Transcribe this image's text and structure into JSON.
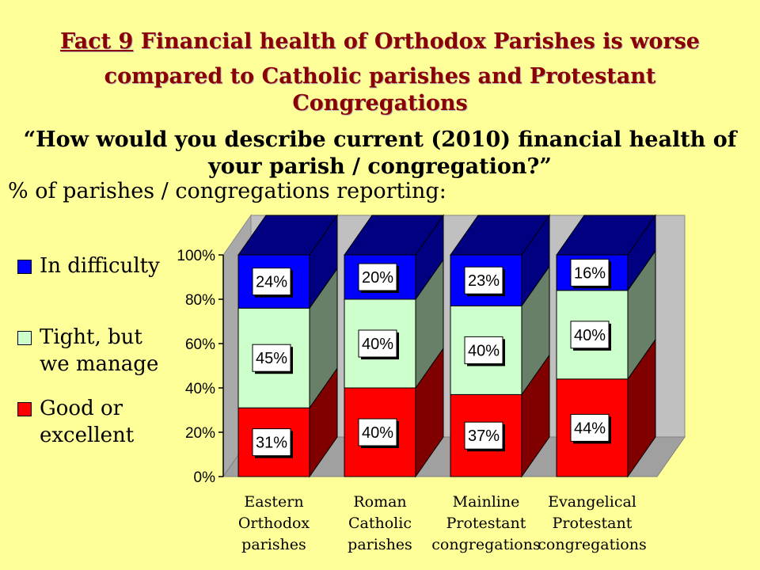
{
  "slide": {
    "title_prefix": "Fact 9",
    "title_line1": " Financial health of Orthodox Parishes is worse",
    "title_line2": "compared to Catholic parishes and Protestant",
    "title_line3": "Congregations",
    "question_line1": "“How would you describe current (2010) financial health of",
    "question_line2": "your parish / congregation?”",
    "subtitle": "% of parishes / congregations reporting:"
  },
  "legend": [
    {
      "lines": [
        "In difficulty"
      ],
      "color": "#0000ff"
    },
    {
      "lines": [
        "Tight, but",
        "we manage"
      ],
      "color": "#ccffcc"
    },
    {
      "lines": [
        "Good or",
        "excellent"
      ],
      "color": "#ff0000"
    }
  ],
  "chart_data": {
    "type": "bar",
    "stacked": true,
    "three_d": true,
    "categories": [
      [
        "Eastern",
        "Orthodox",
        "parishes"
      ],
      [
        "Roman",
        "Catholic",
        "parishes"
      ],
      [
        "Mainline",
        "Protestant",
        "congregations"
      ],
      [
        "Evangelical",
        "Protestant",
        "congregations"
      ]
    ],
    "series": [
      {
        "name": "Good or excellent",
        "values": [
          31,
          40,
          37,
          44
        ],
        "labels": [
          "31%",
          "40%",
          "37%",
          "44%"
        ],
        "color": "#ff0000",
        "side_color": "#800000"
      },
      {
        "name": "Tight, but we manage",
        "values": [
          45,
          40,
          40,
          40
        ],
        "labels": [
          "45%",
          "40%",
          "40%",
          "40%"
        ],
        "color": "#ccffcc",
        "side_color": "#678067"
      },
      {
        "name": "In difficulty",
        "values": [
          24,
          20,
          23,
          16
        ],
        "labels": [
          "24%",
          "20%",
          "23%",
          "16%"
        ],
        "color": "#0000ff",
        "side_color": "#000080"
      }
    ],
    "y_ticks": [
      "0%",
      "20%",
      "40%",
      "60%",
      "80%",
      "100%"
    ],
    "ylim": [
      0,
      100
    ],
    "legend_position": "left",
    "grid": false
  }
}
